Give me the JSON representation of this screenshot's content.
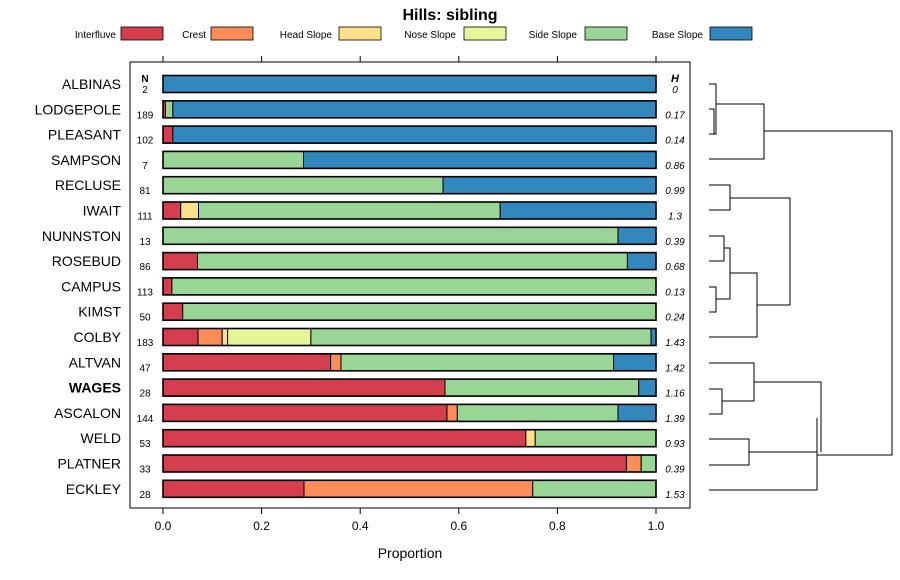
{
  "chart_data": {
    "type": "stacked-bar",
    "title": "Hills: sibling",
    "xlabel": "Proportion",
    "ylabel": "",
    "xlim": [
      0,
      1
    ],
    "x_ticks": [
      "0.0",
      "0.2",
      "0.4",
      "0.6",
      "0.8",
      "1.0"
    ],
    "x_tick_values": [
      0,
      0.2,
      0.4,
      0.6,
      0.8,
      1.0
    ],
    "legend_position": "top",
    "n_header": "N",
    "h_header": "H",
    "components": [
      {
        "name": "Interfluve",
        "color": "#d53e4f"
      },
      {
        "name": "Crest",
        "color": "#fc8d59"
      },
      {
        "name": "Head Slope",
        "color": "#fee08b"
      },
      {
        "name": "Nose Slope",
        "color": "#e6f598"
      },
      {
        "name": "Side Slope",
        "color": "#99d594"
      },
      {
        "name": "Base Slope",
        "color": "#3288bd"
      }
    ],
    "series": [
      {
        "name": "ALBINAS",
        "n": "2",
        "h": "0",
        "bold": false,
        "values": [
          0,
          0,
          0,
          0,
          0,
          1.0
        ]
      },
      {
        "name": "LODGEPOLE",
        "n": "189",
        "h": "0.17",
        "bold": false,
        "values": [
          0.005,
          0,
          0,
          0,
          0.015,
          0.98
        ]
      },
      {
        "name": "PLEASANT",
        "n": "102",
        "h": "0.14",
        "bold": false,
        "values": [
          0.02,
          0,
          0,
          0,
          0,
          0.98
        ]
      },
      {
        "name": "SAMPSON",
        "n": "7",
        "h": "0.86",
        "bold": false,
        "values": [
          0,
          0,
          0,
          0,
          0.285,
          0.715
        ]
      },
      {
        "name": "RECLUSE",
        "n": "81",
        "h": "0.99",
        "bold": false,
        "values": [
          0,
          0,
          0,
          0,
          0.568,
          0.432
        ]
      },
      {
        "name": "IWAIT",
        "n": "111",
        "h": "1.3",
        "bold": false,
        "values": [
          0.036,
          0,
          0.036,
          0,
          0.612,
          0.316
        ]
      },
      {
        "name": "NUNNSTON",
        "n": "13",
        "h": "0.39",
        "bold": false,
        "values": [
          0,
          0,
          0,
          0,
          0.923,
          0.077
        ]
      },
      {
        "name": "ROSEBUD",
        "n": "86",
        "h": "0.68",
        "bold": false,
        "values": [
          0.07,
          0,
          0,
          0,
          0.872,
          0.058
        ]
      },
      {
        "name": "CAMPUS",
        "n": "113",
        "h": "0.13",
        "bold": false,
        "values": [
          0.018,
          0,
          0,
          0,
          0.982,
          0
        ]
      },
      {
        "name": "KIMST",
        "n": "50",
        "h": "0.24",
        "bold": false,
        "values": [
          0.04,
          0,
          0,
          0,
          0.96,
          0
        ]
      },
      {
        "name": "COLBY",
        "n": "183",
        "h": "1.43",
        "bold": false,
        "values": [
          0.071,
          0.049,
          0.011,
          0.169,
          0.69,
          0.01
        ]
      },
      {
        "name": "ALTVAN",
        "n": "47",
        "h": "1.42",
        "bold": false,
        "values": [
          0.34,
          0.021,
          0,
          0,
          0.553,
          0.086
        ]
      },
      {
        "name": "WAGES",
        "n": "28",
        "h": "1.16",
        "bold": true,
        "values": [
          0.572,
          0,
          0,
          0,
          0.393,
          0.035
        ]
      },
      {
        "name": "ASCALON",
        "n": "144",
        "h": "1.39",
        "bold": false,
        "values": [
          0.576,
          0.021,
          0,
          0,
          0.326,
          0.077
        ]
      },
      {
        "name": "WELD",
        "n": "53",
        "h": "0.93",
        "bold": false,
        "values": [
          0.736,
          0,
          0.019,
          0,
          0.245,
          0
        ]
      },
      {
        "name": "PLATNER",
        "n": "33",
        "h": "0.39",
        "bold": false,
        "values": [
          0.94,
          0.03,
          0,
          0,
          0.03,
          0
        ]
      },
      {
        "name": "ECKLEY",
        "n": "28",
        "h": "1.53",
        "bold": false,
        "values": [
          0.286,
          0.464,
          0,
          0,
          0.25,
          0
        ]
      }
    ],
    "dendrogram": "hierarchical clustering of the 17 series (right margin)"
  }
}
